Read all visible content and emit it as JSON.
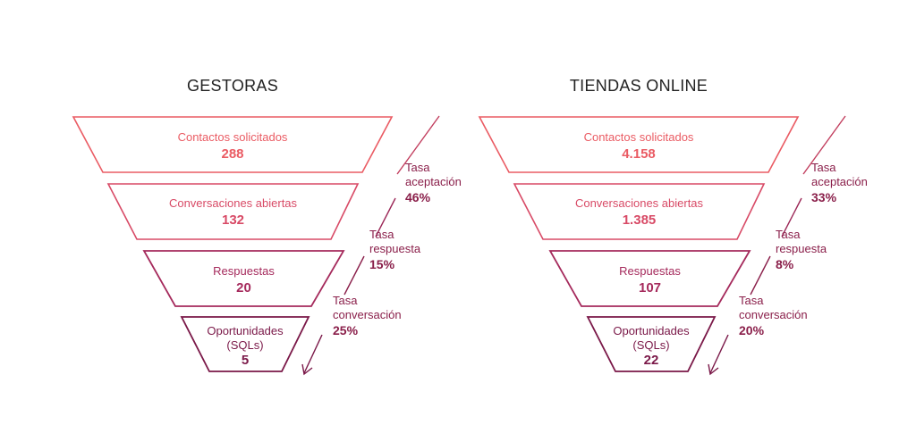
{
  "colors": {
    "stage1": "#ea5b63",
    "stage2": "#d84a66",
    "stage3": "#a52a5c",
    "stage4": "#7a1848",
    "rate1": "#9b2656",
    "rate2": "#8a1f4a",
    "rate3": "#7a1848"
  },
  "funnels": [
    {
      "title": "GESTORAS",
      "stages": [
        {
          "label": "Contactos solicitados",
          "value": "288"
        },
        {
          "label": "Conversaciones abiertas",
          "value": "132"
        },
        {
          "label": "Respuestas",
          "value": "20"
        },
        {
          "label_line1": "Oportunidades",
          "label_line2": "(SQLs)",
          "value": "5"
        }
      ],
      "rates": [
        {
          "label_line1": "Tasa",
          "label_line2": "aceptación",
          "value": "46%"
        },
        {
          "label_line1": "Tasa",
          "label_line2": "respuesta",
          "value": "15%"
        },
        {
          "label_line1": "Tasa",
          "label_line2": "conversación",
          "value": "25%"
        }
      ]
    },
    {
      "title": "TIENDAS ONLINE",
      "stages": [
        {
          "label": "Contactos solicitados",
          "value": "4.158"
        },
        {
          "label": "Conversaciones abiertas",
          "value": "1.385"
        },
        {
          "label": "Respuestas",
          "value": "107"
        },
        {
          "label_line1": "Oportunidades",
          "label_line2": "(SQLs)",
          "value": "22"
        }
      ],
      "rates": [
        {
          "label_line1": "Tasa",
          "label_line2": "aceptación",
          "value": "33%"
        },
        {
          "label_line1": "Tasa",
          "label_line2": "respuesta",
          "value": "8%"
        },
        {
          "label_line1": "Tasa",
          "label_line2": "conversación",
          "value": "20%"
        }
      ]
    }
  ]
}
